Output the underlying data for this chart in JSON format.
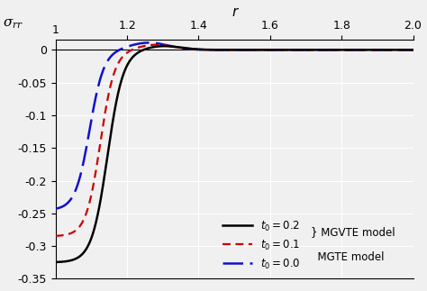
{
  "xlim": [
    1.0,
    2.0
  ],
  "ylim": [
    -0.35,
    0.015
  ],
  "xticks": [
    1.2,
    1.4,
    1.6,
    1.8,
    2.0
  ],
  "yticks": [
    0,
    -0.05,
    -0.1,
    -0.15,
    -0.2,
    -0.25,
    -0.3,
    -0.35
  ],
  "xlabel": "r",
  "ylabel": "$\\sigma_{rr}$",
  "background_color": "#f0f0f0",
  "grid_color": "#ffffff",
  "line1_color": "#000000",
  "line2_color": "#cc0000",
  "line3_color": "#1111cc",
  "label1": "$t_0 = 0.2$",
  "label2": "$t_0 = 0.1$",
  "label3": "$t_0 = 0.0$",
  "model12": "} MGVTE model",
  "model3": "  MGTE model"
}
